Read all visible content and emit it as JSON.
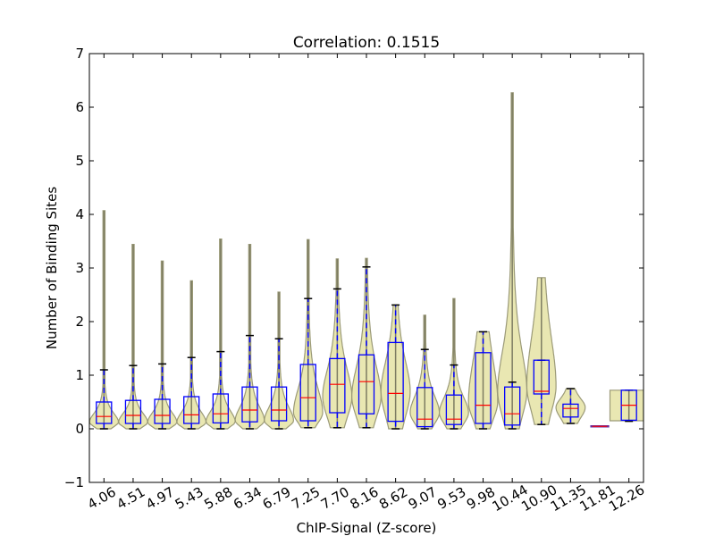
{
  "chart_data": {
    "type": "violin-box",
    "title": "Correlation: 0.1515",
    "xlabel": "ChIP-Signal (Z-score)",
    "ylabel": "Number of Binding Sites",
    "ylim": [
      -1,
      7
    ],
    "yticks": [
      "−1",
      "0",
      "1",
      "2",
      "3",
      "4",
      "5",
      "6",
      "7"
    ],
    "ytick_values": [
      -1,
      0,
      1,
      2,
      3,
      4,
      5,
      6,
      7
    ],
    "grid": false,
    "colors": {
      "violin_fill": "#e9e7b2",
      "violin_edge": "#9b9a78",
      "box": "#0000ff",
      "median": "#ff0000",
      "whisker": "#0000ff",
      "cap": "#000000",
      "flat": "#6a2a9a"
    },
    "categories": [
      "4.06",
      "4.51",
      "4.97",
      "5.43",
      "5.88",
      "6.34",
      "6.79",
      "7.25",
      "7.70",
      "8.16",
      "8.62",
      "9.07",
      "9.53",
      "9.98",
      "10.44",
      "10.90",
      "11.35",
      "11.81",
      "12.26"
    ],
    "boxes": [
      {
        "q1": 0.1,
        "median": 0.23,
        "q3": 0.5,
        "wlo": 0,
        "whi": 1.1,
        "vmin": 0,
        "vmax": 4.07,
        "mode": 0.12,
        "spread": 0.3
      },
      {
        "q1": 0.1,
        "median": 0.25,
        "q3": 0.53,
        "wlo": 0,
        "whi": 1.18,
        "vmin": 0,
        "vmax": 3.44,
        "mode": 0.12,
        "spread": 0.3
      },
      {
        "q1": 0.1,
        "median": 0.25,
        "q3": 0.55,
        "wlo": 0,
        "whi": 1.21,
        "vmin": 0,
        "vmax": 3.13,
        "mode": 0.12,
        "spread": 0.32
      },
      {
        "q1": 0.1,
        "median": 0.26,
        "q3": 0.6,
        "wlo": 0,
        "whi": 1.33,
        "vmin": 0,
        "vmax": 2.76,
        "mode": 0.12,
        "spread": 0.34
      },
      {
        "q1": 0.11,
        "median": 0.28,
        "q3": 0.65,
        "wlo": 0,
        "whi": 1.44,
        "vmin": 0,
        "vmax": 3.54,
        "mode": 0.13,
        "spread": 0.36
      },
      {
        "q1": 0.13,
        "median": 0.35,
        "q3": 0.78,
        "wlo": 0,
        "whi": 1.74,
        "vmin": 0,
        "vmax": 3.44,
        "mode": 0.15,
        "spread": 0.45
      },
      {
        "q1": 0.15,
        "median": 0.35,
        "q3": 0.78,
        "wlo": 0,
        "whi": 1.68,
        "vmin": 0,
        "vmax": 2.55,
        "mode": 0.15,
        "spread": 0.45
      },
      {
        "q1": 0.15,
        "median": 0.58,
        "q3": 1.2,
        "wlo": 0.02,
        "whi": 2.43,
        "vmin": 0.02,
        "vmax": 3.53,
        "mode": 0.3,
        "spread": 0.8
      },
      {
        "q1": 0.3,
        "median": 0.83,
        "q3": 1.31,
        "wlo": 0.02,
        "whi": 2.61,
        "vmin": 0.02,
        "vmax": 3.17,
        "mode": 0.6,
        "spread": 0.9
      },
      {
        "q1": 0.28,
        "median": 0.88,
        "q3": 1.38,
        "wlo": 0.02,
        "whi": 3.02,
        "vmin": 0.02,
        "vmax": 3.18,
        "mode": 0.6,
        "spread": 1.0
      },
      {
        "q1": 0.14,
        "median": 0.66,
        "q3": 1.61,
        "wlo": 0,
        "whi": 2.31,
        "vmin": 0,
        "vmax": 2.31,
        "mode": 0.7,
        "spread": 1.0
      },
      {
        "q1": 0.04,
        "median": 0.18,
        "q3": 0.77,
        "wlo": 0,
        "whi": 1.48,
        "vmin": 0,
        "vmax": 2.12,
        "mode": 0.3,
        "spread": 0.55
      },
      {
        "q1": 0.08,
        "median": 0.18,
        "q3": 0.63,
        "wlo": 0,
        "whi": 1.19,
        "vmin": 0,
        "vmax": 2.43,
        "mode": 0.3,
        "spread": 0.5
      },
      {
        "q1": 0.1,
        "median": 0.44,
        "q3": 1.42,
        "wlo": 0,
        "whi": 1.81,
        "vmin": 0,
        "vmax": 1.81,
        "mode": 0.5,
        "spread": 1.4
      },
      {
        "q1": 0.07,
        "median": 0.28,
        "q3": 0.78,
        "wlo": 0,
        "whi": 0.87,
        "vmin": 0,
        "vmax": 6.27,
        "mode": 0.7,
        "spread": 1.3
      },
      {
        "q1": 0.65,
        "median": 0.7,
        "q3": 1.28,
        "wlo": 0.08,
        "whi": 1.28,
        "vmin": 0.08,
        "vmax": 2.82,
        "mode": 0.8,
        "spread": 1.6
      },
      {
        "q1": 0.22,
        "median": 0.38,
        "q3": 0.46,
        "wlo": 0.1,
        "whi": 0.75,
        "vmin": 0.1,
        "vmax": 0.75,
        "mode": 0.4,
        "spread": 0.3
      },
      {
        "q1": 0.045,
        "median": 0.045,
        "q3": 0.045,
        "wlo": 0.045,
        "whi": 0.045,
        "vmin": 0.045,
        "vmax": 0.045,
        "mode": 0.045,
        "spread": 0
      },
      {
        "q1": 0.16,
        "median": 0.44,
        "q3": 0.72,
        "wlo": 0.14,
        "whi": 0.72,
        "vmin": 0.15,
        "vmax": 0.72,
        "mode": 0.44,
        "spread": -1
      }
    ]
  }
}
